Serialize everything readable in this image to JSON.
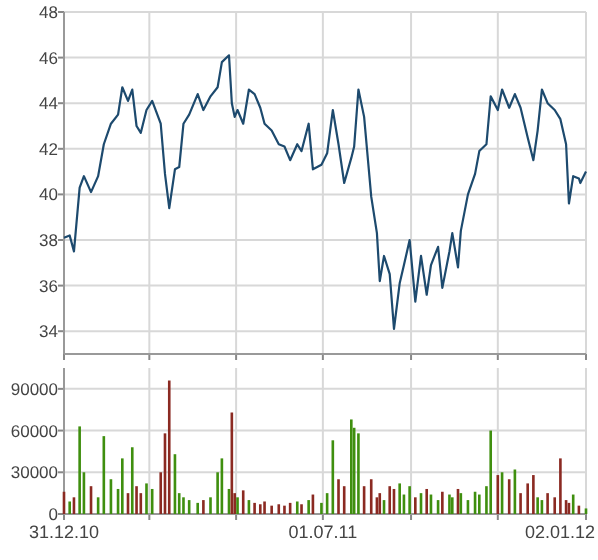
{
  "chart_data": [
    {
      "type": "line",
      "x": [
        "2010-12-31",
        "2011-01-04",
        "2011-01-07",
        "2011-01-11",
        "2011-01-14",
        "2011-01-19",
        "2011-01-24",
        "2011-01-28",
        "2011-02-02",
        "2011-02-07",
        "2011-02-10",
        "2011-02-14",
        "2011-02-17",
        "2011-02-20",
        "2011-02-23",
        "2011-02-27",
        "2011-03-03",
        "2011-03-09",
        "2011-03-12",
        "2011-03-15",
        "2011-03-19",
        "2011-03-22",
        "2011-03-25",
        "2011-03-29",
        "2011-04-04",
        "2011-04-08",
        "2011-04-13",
        "2011-04-18",
        "2011-04-21",
        "2011-04-26",
        "2011-04-28",
        "2011-04-30",
        "2011-05-02",
        "2011-05-06",
        "2011-05-10",
        "2011-05-14",
        "2011-05-18",
        "2011-05-21",
        "2011-05-26",
        "2011-05-31",
        "2011-06-04",
        "2011-06-08",
        "2011-06-13",
        "2011-06-16",
        "2011-06-21",
        "2011-06-24",
        "2011-06-30",
        "2011-07-04",
        "2011-07-08",
        "2011-07-12",
        "2011-07-16",
        "2011-07-21",
        "2011-07-23",
        "2011-07-26",
        "2011-07-30",
        "2011-08-04",
        "2011-08-08",
        "2011-08-10",
        "2011-08-13",
        "2011-08-17",
        "2011-08-20",
        "2011-08-24",
        "2011-08-27",
        "2011-08-31",
        "2011-09-04",
        "2011-09-08",
        "2011-09-12",
        "2011-09-15",
        "2011-09-20",
        "2011-09-23",
        "2011-09-28",
        "2011-09-30",
        "2011-10-04",
        "2011-10-06",
        "2011-10-11",
        "2011-10-16",
        "2011-10-19",
        "2011-10-24",
        "2011-10-27",
        "2011-11-01",
        "2011-11-04",
        "2011-11-09",
        "2011-11-13",
        "2011-11-17",
        "2011-11-22",
        "2011-11-26",
        "2011-11-29",
        "2011-12-02",
        "2011-12-06",
        "2011-12-11",
        "2011-12-15",
        "2011-12-19",
        "2011-12-21",
        "2011-12-24",
        "2011-12-28",
        "2011-12-29",
        "2012-01-02"
      ],
      "series": [
        {
          "color": "#1d4a6e",
          "values": [
            38.1,
            38.2,
            37.5,
            40.3,
            40.8,
            40.1,
            40.8,
            42.2,
            43.1,
            43.5,
            44.7,
            44.1,
            44.6,
            43.0,
            42.7,
            43.7,
            44.1,
            43.1,
            40.9,
            39.4,
            41.1,
            41.2,
            43.1,
            43.5,
            44.4,
            43.7,
            44.3,
            44.7,
            45.8,
            46.1,
            44.0,
            43.4,
            43.7,
            43.1,
            44.6,
            44.4,
            43.8,
            43.1,
            42.8,
            42.2,
            42.1,
            41.5,
            42.2,
            41.9,
            43.1,
            41.1,
            41.3,
            41.8,
            43.7,
            42.2,
            40.5,
            41.6,
            42.1,
            44.6,
            43.4,
            39.9,
            38.3,
            36.2,
            37.3,
            36.5,
            34.1,
            36.1,
            36.9,
            38.0,
            35.3,
            37.3,
            35.6,
            36.9,
            37.7,
            35.9,
            37.5,
            38.3,
            36.8,
            38.4,
            40.0,
            40.9,
            41.9,
            42.2,
            44.3,
            43.7,
            44.6,
            43.8,
            44.4,
            43.8,
            42.5,
            41.5,
            42.8,
            44.6,
            44.0,
            43.7,
            43.3,
            42.2,
            39.6,
            40.8,
            40.7,
            40.5,
            41.0
          ]
        }
      ],
      "xlim": [
        "2010-12-31",
        "2012-01-02"
      ],
      "xticks": [
        {
          "value": "2010-12-31",
          "label": null
        },
        {
          "value": "2011-03-01",
          "label": null
        },
        {
          "value": "2011-05-01",
          "label": null
        },
        {
          "value": "2011-07-01",
          "label": null
        },
        {
          "value": "2011-09-01",
          "label": null
        },
        {
          "value": "2011-11-01",
          "label": null
        },
        {
          "value": "2012-01-02",
          "label": null
        }
      ],
      "ylim": [
        33,
        48
      ],
      "yticks": [
        34,
        36,
        38,
        40,
        42,
        44,
        46,
        48
      ],
      "grid": true,
      "tick_labels": "y"
    },
    {
      "type": "bar",
      "x": [
        "2010-12-31",
        "2011-01-04",
        "2011-01-07",
        "2011-01-11",
        "2011-01-14",
        "2011-01-19",
        "2011-01-24",
        "2011-01-28",
        "2011-02-02",
        "2011-02-07",
        "2011-02-10",
        "2011-02-14",
        "2011-02-17",
        "2011-02-20",
        "2011-02-23",
        "2011-02-27",
        "2011-03-03",
        "2011-03-09",
        "2011-03-12",
        "2011-03-15",
        "2011-03-19",
        "2011-03-22",
        "2011-03-25",
        "2011-03-29",
        "2011-04-04",
        "2011-04-08",
        "2011-04-13",
        "2011-04-18",
        "2011-04-21",
        "2011-04-26",
        "2011-04-28",
        "2011-04-30",
        "2011-05-02",
        "2011-05-06",
        "2011-05-10",
        "2011-05-14",
        "2011-05-18",
        "2011-05-21",
        "2011-05-26",
        "2011-05-31",
        "2011-06-04",
        "2011-06-08",
        "2011-06-13",
        "2011-06-16",
        "2011-06-21",
        "2011-06-24",
        "2011-06-30",
        "2011-07-04",
        "2011-07-08",
        "2011-07-12",
        "2011-07-16",
        "2011-07-21",
        "2011-07-23",
        "2011-07-26",
        "2011-07-30",
        "2011-08-04",
        "2011-08-08",
        "2011-08-10",
        "2011-08-13",
        "2011-08-17",
        "2011-08-20",
        "2011-08-24",
        "2011-08-27",
        "2011-08-31",
        "2011-09-04",
        "2011-09-08",
        "2011-09-12",
        "2011-09-15",
        "2011-09-20",
        "2011-09-23",
        "2011-09-28",
        "2011-09-30",
        "2011-10-04",
        "2011-10-06",
        "2011-10-11",
        "2011-10-16",
        "2011-10-19",
        "2011-10-24",
        "2011-10-27",
        "2011-11-01",
        "2011-11-04",
        "2011-11-09",
        "2011-11-13",
        "2011-11-17",
        "2011-11-22",
        "2011-11-26",
        "2011-11-29",
        "2011-12-02",
        "2011-12-06",
        "2011-12-11",
        "2011-12-15",
        "2011-12-19",
        "2011-12-21",
        "2011-12-24",
        "2011-12-28",
        "2012-01-02"
      ],
      "values": [
        16000,
        9000,
        12000,
        63000,
        30000,
        20000,
        12000,
        56000,
        25000,
        18000,
        40000,
        15000,
        48000,
        20000,
        15000,
        22000,
        18000,
        30000,
        58000,
        96000,
        43000,
        15000,
        12000,
        10000,
        8000,
        10000,
        12000,
        30000,
        40000,
        18000,
        73000,
        15000,
        12000,
        17000,
        10000,
        8000,
        7000,
        9000,
        6000,
        7000,
        6000,
        8000,
        9000,
        7000,
        10000,
        14000,
        8000,
        15000,
        53000,
        25000,
        20000,
        68000,
        62000,
        58000,
        20000,
        25000,
        12000,
        15000,
        10000,
        20000,
        18000,
        22000,
        14000,
        20000,
        12000,
        15000,
        18000,
        14000,
        10000,
        16000,
        14000,
        12000,
        18000,
        15000,
        10000,
        16000,
        14000,
        20000,
        60000,
        28000,
        30000,
        25000,
        32000,
        15000,
        22000,
        28000,
        12000,
        10000,
        15000,
        12000,
        40000,
        10000,
        8000,
        14000,
        6000,
        4000
      ],
      "colors": [
        "#8b2a22",
        "#3f8f0f",
        "#8b2a22",
        "#3f8f0f",
        "#3f8f0f",
        "#8b2a22",
        "#3f8f0f",
        "#3f8f0f",
        "#3f8f0f",
        "#3f8f0f",
        "#3f8f0f",
        "#8b2a22",
        "#3f8f0f",
        "#8b2a22",
        "#8b2a22",
        "#3f8f0f",
        "#3f8f0f",
        "#8b2a22",
        "#8b2a22",
        "#8b2a22",
        "#3f8f0f",
        "#3f8f0f",
        "#3f8f0f",
        "#3f8f0f",
        "#3f8f0f",
        "#8b2a22",
        "#3f8f0f",
        "#3f8f0f",
        "#3f8f0f",
        "#3f8f0f",
        "#8b2a22",
        "#8b2a22",
        "#3f8f0f",
        "#8b2a22",
        "#3f8f0f",
        "#8b2a22",
        "#8b2a22",
        "#8b2a22",
        "#8b2a22",
        "#8b2a22",
        "#8b2a22",
        "#8b2a22",
        "#3f8f0f",
        "#8b2a22",
        "#3f8f0f",
        "#8b2a22",
        "#3f8f0f",
        "#3f8f0f",
        "#3f8f0f",
        "#8b2a22",
        "#8b2a22",
        "#3f8f0f",
        "#3f8f0f",
        "#3f8f0f",
        "#8b2a22",
        "#8b2a22",
        "#8b2a22",
        "#8b2a22",
        "#3f8f0f",
        "#8b2a22",
        "#8b2a22",
        "#3f8f0f",
        "#3f8f0f",
        "#3f8f0f",
        "#8b2a22",
        "#3f8f0f",
        "#8b2a22",
        "#3f8f0f",
        "#3f8f0f",
        "#8b2a22",
        "#3f8f0f",
        "#3f8f0f",
        "#8b2a22",
        "#3f8f0f",
        "#3f8f0f",
        "#3f8f0f",
        "#3f8f0f",
        "#3f8f0f",
        "#3f8f0f",
        "#8b2a22",
        "#3f8f0f",
        "#8b2a22",
        "#3f8f0f",
        "#8b2a22",
        "#8b2a22",
        "#8b2a22",
        "#3f8f0f",
        "#3f8f0f",
        "#8b2a22",
        "#8b2a22",
        "#8b2a22",
        "#8b2a22",
        "#8b2a22",
        "#3f8f0f",
        "#8b2a22",
        "#3f8f0f"
      ],
      "xlim": [
        "2010-12-31",
        "2012-01-02"
      ],
      "xticks": [
        {
          "value": "2010-12-31",
          "label": "31.12.10"
        },
        {
          "value": "2011-03-01",
          "label": null
        },
        {
          "value": "2011-05-01",
          "label": null
        },
        {
          "value": "2011-07-01",
          "label": "01.07.11"
        },
        {
          "value": "2011-09-01",
          "label": null
        },
        {
          "value": "2011-11-01",
          "label": null
        },
        {
          "value": "2012-01-02",
          "label": "02.01.12"
        }
      ],
      "ylim": [
        0,
        105000
      ],
      "yticks": [
        0,
        30000,
        60000,
        90000
      ],
      "grid": true
    }
  ]
}
